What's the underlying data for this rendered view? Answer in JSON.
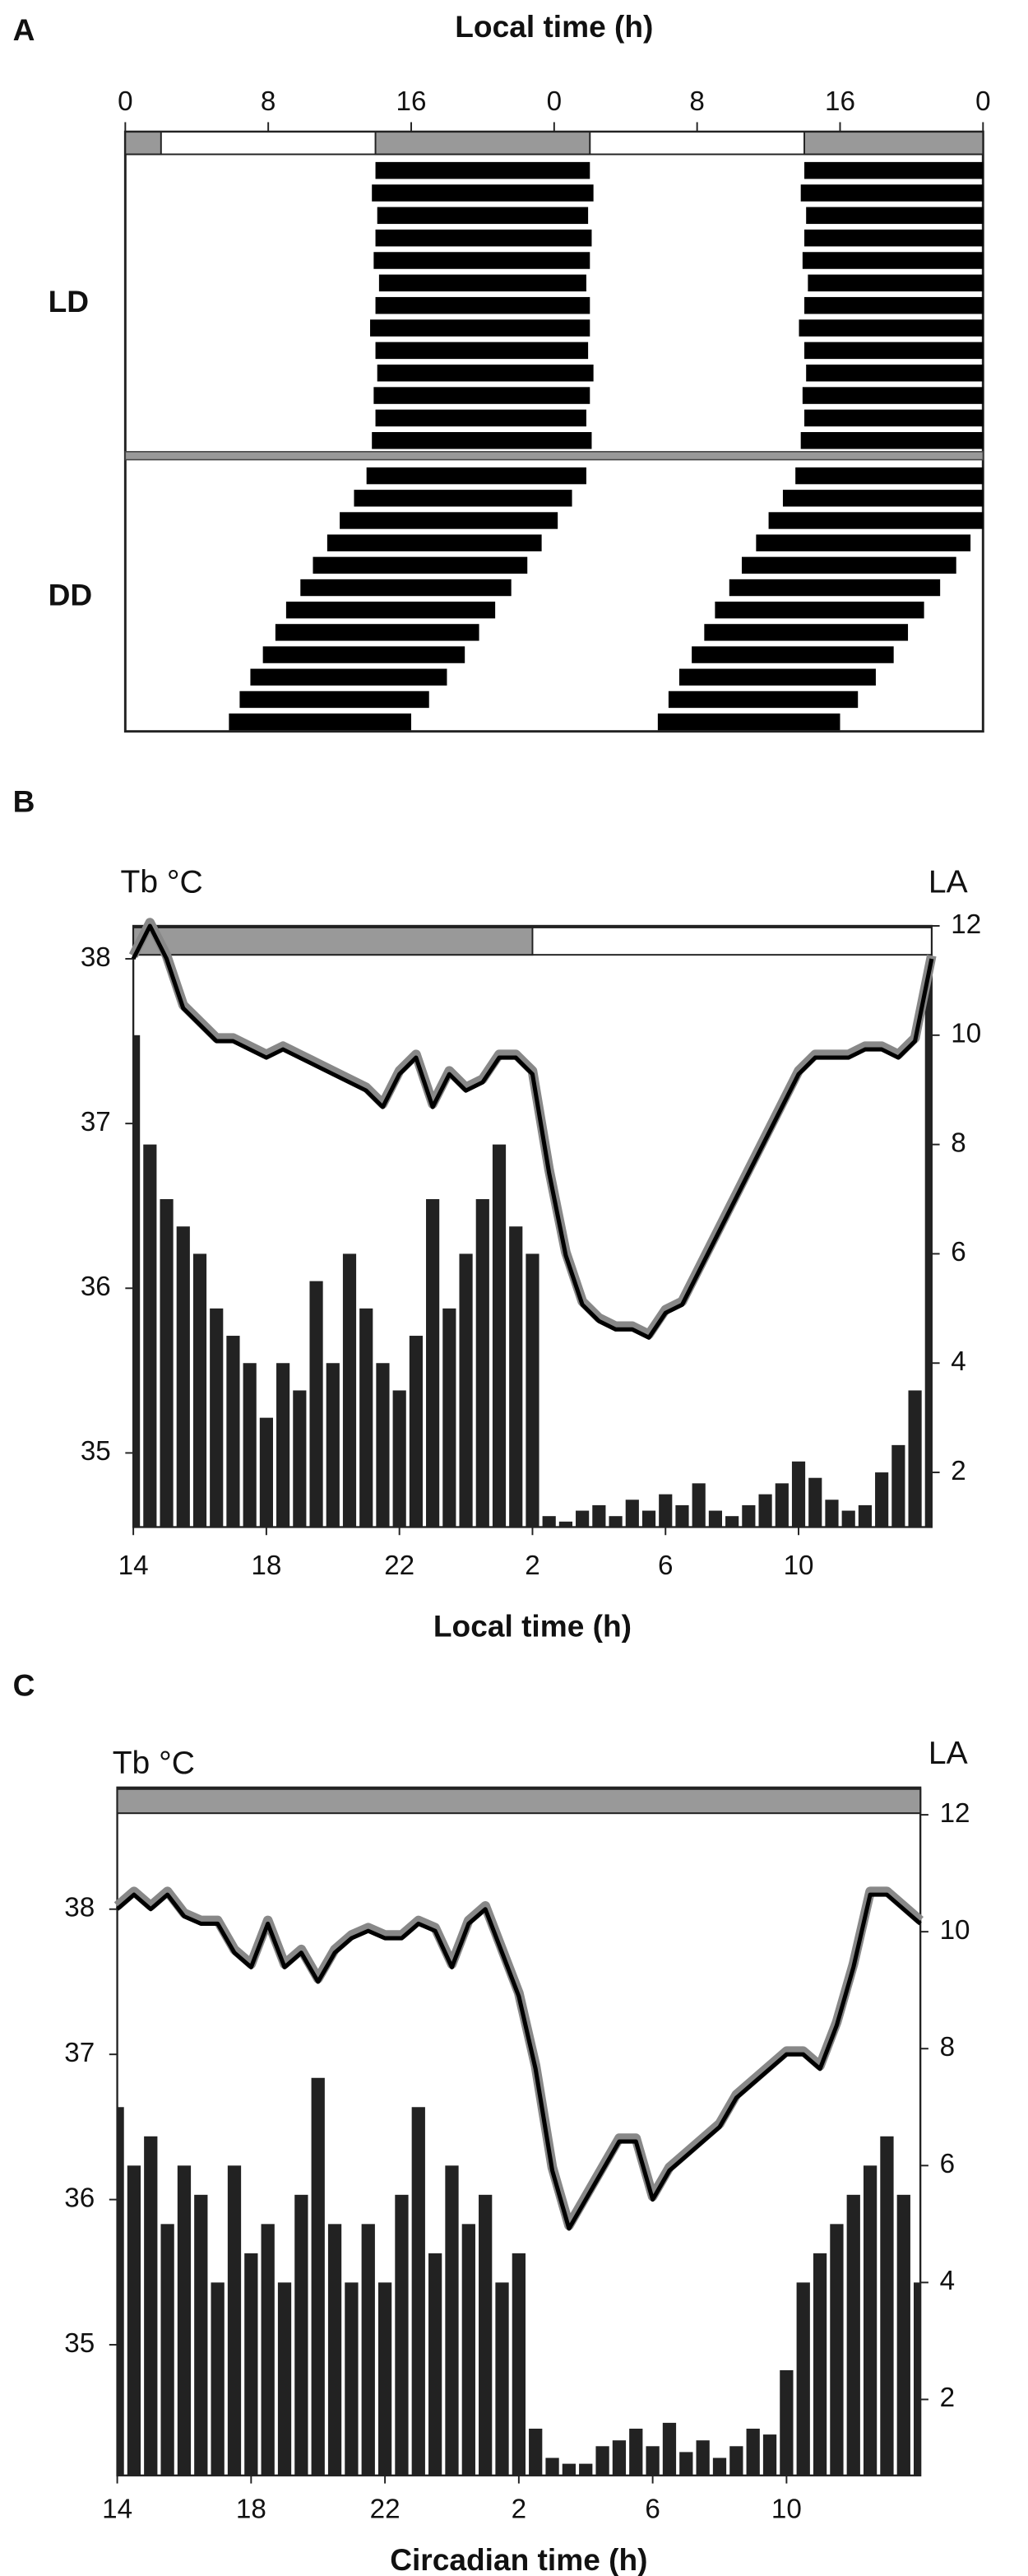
{
  "chart_data": [
    {
      "type": "actogram",
      "panel_label": "A",
      "title": "Local time (h)",
      "xlim": [
        0,
        48
      ],
      "xticks": [
        0,
        8,
        16,
        {
          "value": 24,
          "label": "0"
        },
        {
          "value": 32,
          "label": "8"
        },
        {
          "value": 40,
          "label": "16"
        },
        {
          "value": 48,
          "label": "0"
        }
      ],
      "dark_intervals": [
        [
          0,
          2
        ],
        [
          14,
          26
        ],
        [
          38,
          48
        ]
      ],
      "color": "#000000",
      "groups": [
        {
          "name": "LD",
          "rows": [
            {
              "onset": 14.0,
              "offset": 26.0
            },
            {
              "onset": 13.8,
              "offset": 26.2
            },
            {
              "onset": 14.1,
              "offset": 25.9
            },
            {
              "onset": 14.0,
              "offset": 26.1
            },
            {
              "onset": 13.9,
              "offset": 26.0
            },
            {
              "onset": 14.2,
              "offset": 25.8
            },
            {
              "onset": 14.0,
              "offset": 26.0
            },
            {
              "onset": 13.7,
              "offset": 26.0
            },
            {
              "onset": 14.0,
              "offset": 25.9
            },
            {
              "onset": 14.1,
              "offset": 26.2
            },
            {
              "onset": 13.9,
              "offset": 26.0
            },
            {
              "onset": 14.0,
              "offset": 25.8
            },
            {
              "onset": 13.8,
              "offset": 26.1
            }
          ]
        },
        {
          "name": "DD",
          "rows": [
            {
              "onset": 13.5,
              "offset": 25.8
            },
            {
              "onset": 12.8,
              "offset": 25.0
            },
            {
              "onset": 12.0,
              "offset": 24.2
            },
            {
              "onset": 11.3,
              "offset": 23.3
            },
            {
              "onset": 10.5,
              "offset": 22.5
            },
            {
              "onset": 9.8,
              "offset": 21.6
            },
            {
              "onset": 9.0,
              "offset": 20.7
            },
            {
              "onset": 8.4,
              "offset": 19.8
            },
            {
              "onset": 7.7,
              "offset": 19.0
            },
            {
              "onset": 7.0,
              "offset": 18.0
            },
            {
              "onset": 6.4,
              "offset": 17.0
            },
            {
              "onset": 5.8,
              "offset": 16.0
            }
          ]
        }
      ]
    },
    {
      "type": "combo",
      "panel_label": "B",
      "xlabel": "Local time (h)",
      "ylabel": "Tb °C",
      "y2label": "LA",
      "x": [
        14,
        14.5,
        15,
        15.5,
        16,
        16.5,
        17,
        17.5,
        18,
        18.5,
        19,
        19.5,
        20,
        20.5,
        21,
        21.5,
        22,
        22.5,
        23,
        23.5,
        24,
        24.5,
        25,
        25.5,
        26,
        26.5,
        27,
        27.5,
        28,
        28.5,
        29,
        29.5,
        30,
        30.5,
        31,
        31.5,
        32,
        32.5,
        33,
        33.5,
        34,
        34.5,
        35,
        35.5,
        36,
        36.5,
        37,
        37.5,
        38
      ],
      "xlim": [
        14,
        38
      ],
      "xticks": [
        14,
        18,
        22,
        {
          "value": 26,
          "label": "2"
        },
        {
          "value": 30,
          "label": "6"
        },
        {
          "value": 34,
          "label": "10"
        }
      ],
      "ylim": [
        34.55,
        38.2
      ],
      "yticks": [
        35,
        36,
        37,
        38
      ],
      "y2lim": [
        1,
        12
      ],
      "y2ticks": [
        2,
        4,
        6,
        8,
        10,
        12
      ],
      "dark_intervals": [
        [
          14,
          26
        ]
      ],
      "series": [
        {
          "type": "bar",
          "axis": "y2",
          "color": "#222222",
          "values": [
            10,
            8,
            7,
            6.5,
            6,
            5,
            4.5,
            4,
            3,
            4,
            3.5,
            5.5,
            4,
            6,
            5,
            4,
            3.5,
            4.5,
            7,
            5,
            6,
            7,
            8,
            6.5,
            6,
            1.2,
            1.1,
            1.3,
            1.4,
            1.2,
            1.5,
            1.3,
            1.6,
            1.4,
            1.8,
            1.3,
            1.2,
            1.4,
            1.6,
            1.8,
            2.2,
            1.9,
            1.5,
            1.3,
            1.4,
            2,
            2.5,
            3.5,
            11
          ]
        },
        {
          "type": "line",
          "axis": "y",
          "color": "#000000",
          "values": [
            38.0,
            38.2,
            38.0,
            37.7,
            37.6,
            37.5,
            37.5,
            37.45,
            37.4,
            37.45,
            37.4,
            37.35,
            37.3,
            37.25,
            37.2,
            37.1,
            37.3,
            37.4,
            37.1,
            37.3,
            37.2,
            37.25,
            37.4,
            37.4,
            37.3,
            36.7,
            36.2,
            35.9,
            35.8,
            35.75,
            35.75,
            35.7,
            35.85,
            35.9,
            36.1,
            36.3,
            36.5,
            36.7,
            36.9,
            37.1,
            37.3,
            37.4,
            37.4,
            37.4,
            37.45,
            37.45,
            37.4,
            37.5,
            38.0
          ]
        }
      ]
    },
    {
      "type": "combo",
      "panel_label": "C",
      "xlabel": "Circadian time (h)",
      "ylabel": "Tb °C",
      "y2label": "LA",
      "x": [
        14,
        14.5,
        15,
        15.5,
        16,
        16.5,
        17,
        17.5,
        18,
        18.5,
        19,
        19.5,
        20,
        20.5,
        21,
        21.5,
        22,
        22.5,
        23,
        23.5,
        24,
        24.5,
        25,
        25.5,
        26,
        26.5,
        27,
        27.5,
        28,
        28.5,
        29,
        29.5,
        30,
        30.5,
        31,
        31.5,
        32,
        32.5,
        33,
        33.5,
        34,
        34.5,
        35,
        35.5,
        36,
        36.5,
        37,
        37.5,
        38
      ],
      "xlim": [
        14,
        38
      ],
      "xticks": [
        14,
        18,
        22,
        {
          "value": 26,
          "label": "2"
        },
        {
          "value": 30,
          "label": "6"
        },
        {
          "value": 34,
          "label": "10"
        }
      ],
      "ylim": [
        34.1,
        38.65
      ],
      "yticks": [
        35,
        36,
        37,
        38
      ],
      "y2lim": [
        0.7,
        12
      ],
      "y2ticks": [
        2,
        4,
        6,
        8,
        10,
        12
      ],
      "dark_intervals": [
        [
          14,
          38
        ]
      ],
      "series": [
        {
          "type": "bar",
          "axis": "y2",
          "color": "#222222",
          "values": [
            7,
            6,
            6.5,
            5,
            6,
            5.5,
            4,
            6,
            4.5,
            5,
            4,
            5.5,
            7.5,
            5,
            4,
            5,
            4,
            5.5,
            7,
            4.5,
            6,
            5,
            5.5,
            4,
            4.5,
            1.5,
            1,
            0.9,
            0.9,
            1.2,
            1.3,
            1.5,
            1.2,
            1.6,
            1.1,
            1.3,
            1.0,
            1.2,
            1.5,
            1.4,
            2.5,
            4,
            4.5,
            5,
            5.5,
            6,
            6.5,
            5.5,
            4
          ]
        },
        {
          "type": "line",
          "axis": "y",
          "color": "#000000",
          "values": [
            38.0,
            38.1,
            38.0,
            38.1,
            37.95,
            37.9,
            37.9,
            37.7,
            37.6,
            37.9,
            37.6,
            37.7,
            37.5,
            37.7,
            37.8,
            37.85,
            37.8,
            37.8,
            37.9,
            37.85,
            37.6,
            37.9,
            38.0,
            37.7,
            37.4,
            36.9,
            36.2,
            35.8,
            36.0,
            36.2,
            36.4,
            36.4,
            36.0,
            36.2,
            36.3,
            36.4,
            36.5,
            36.7,
            36.8,
            36.9,
            37.0,
            37.0,
            36.9,
            37.2,
            37.6,
            38.1,
            38.1,
            38.0,
            37.9
          ]
        }
      ]
    }
  ]
}
